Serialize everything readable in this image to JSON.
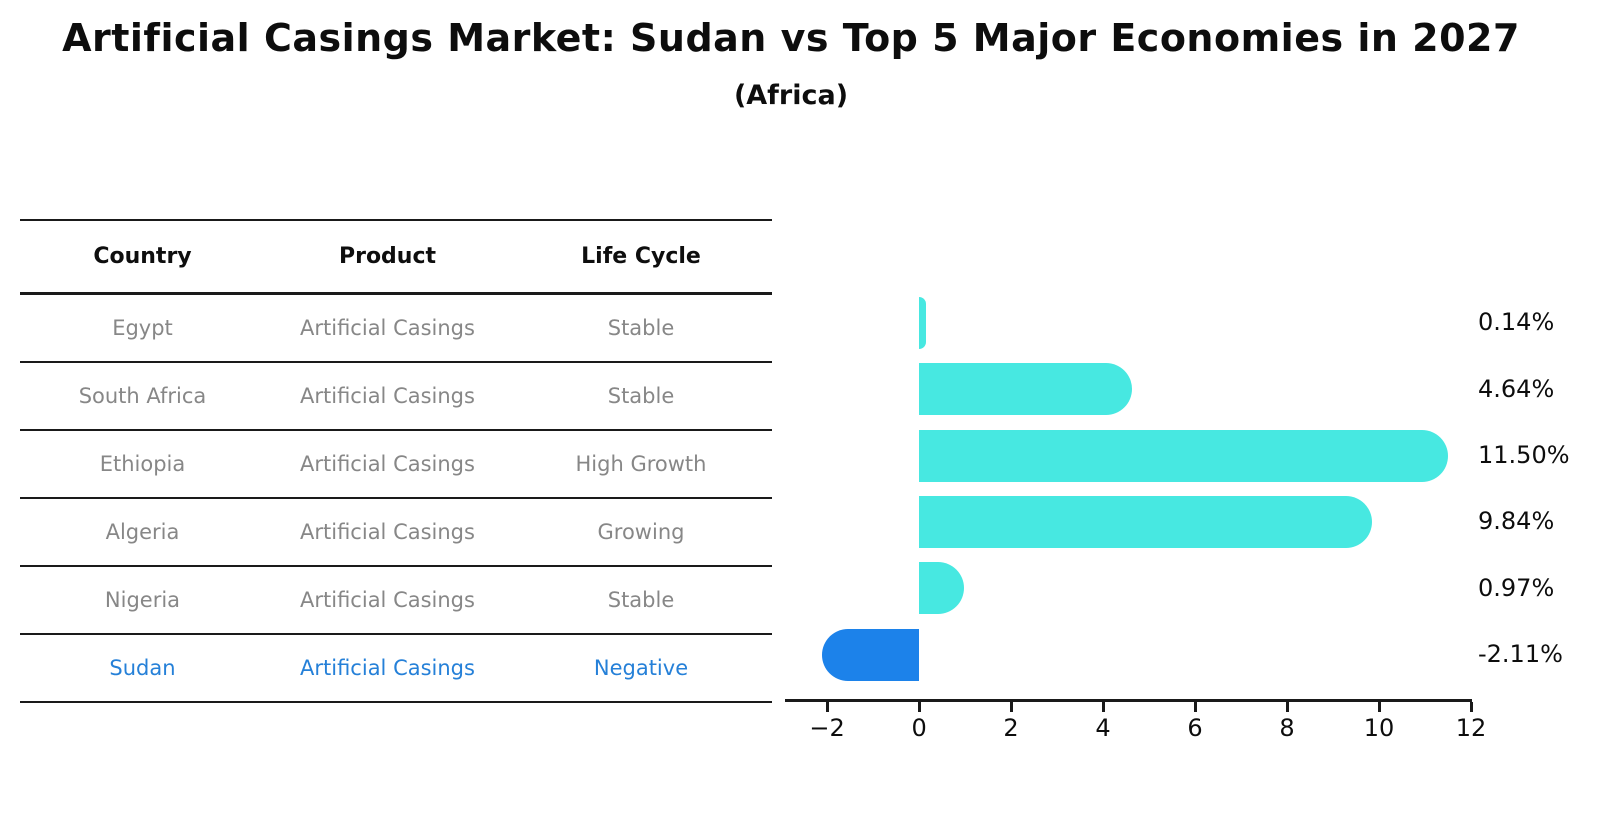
{
  "title": "Artificial Casings Market: Sudan vs Top 5 Major Economies in 2027",
  "subtitle": "(Africa)",
  "table": {
    "headers": [
      "Country",
      "Product",
      "Life Cycle"
    ],
    "rows": [
      {
        "country": "Egypt",
        "product": "Artificial Casings",
        "life_cycle": "Stable",
        "highlight": false
      },
      {
        "country": "South Africa",
        "product": "Artificial Casings",
        "life_cycle": "Stable",
        "highlight": false
      },
      {
        "country": "Ethiopia",
        "product": "Artificial Casings",
        "life_cycle": "High Growth",
        "highlight": false
      },
      {
        "country": "Algeria",
        "product": "Artificial Casings",
        "life_cycle": "Growing",
        "highlight": false
      },
      {
        "country": "Nigeria",
        "product": "Artificial Casings",
        "life_cycle": "Stable",
        "highlight": false
      },
      {
        "country": "Sudan",
        "product": "Artificial Casings",
        "life_cycle": "Negative",
        "highlight": true
      }
    ]
  },
  "chart_data": {
    "type": "bar",
    "orientation": "horizontal",
    "title": "Artificial Casings Market: Sudan vs Top 5 Major Economies in 2027",
    "subtitle": "(Africa)",
    "categories": [
      "Egypt",
      "South Africa",
      "Ethiopia",
      "Algeria",
      "Nigeria",
      "Sudan"
    ],
    "values": [
      0.14,
      4.64,
      11.5,
      9.84,
      0.97,
      -2.11
    ],
    "value_labels": [
      "0.14%",
      "4.64%",
      "11.50%",
      "9.84%",
      "0.97%",
      "-2.11%"
    ],
    "xlim": [
      -2.85,
      12.0
    ],
    "x_ticks": [
      -2,
      0,
      2,
      4,
      6,
      8,
      10,
      12
    ],
    "x_tick_labels": [
      "−2",
      "0",
      "2",
      "4",
      "6",
      "8",
      "10",
      "12"
    ],
    "grid": false,
    "legend": "none",
    "xlabel": "",
    "ylabel": ""
  },
  "colors": {
    "positive_bar": "#47e8e1",
    "negative_bar": "#1c82ea",
    "negative_bar_edge": "#1c82ea",
    "highlight_text": "#2580d8",
    "table_text": "#878787",
    "axis": "#1a1a1a"
  }
}
